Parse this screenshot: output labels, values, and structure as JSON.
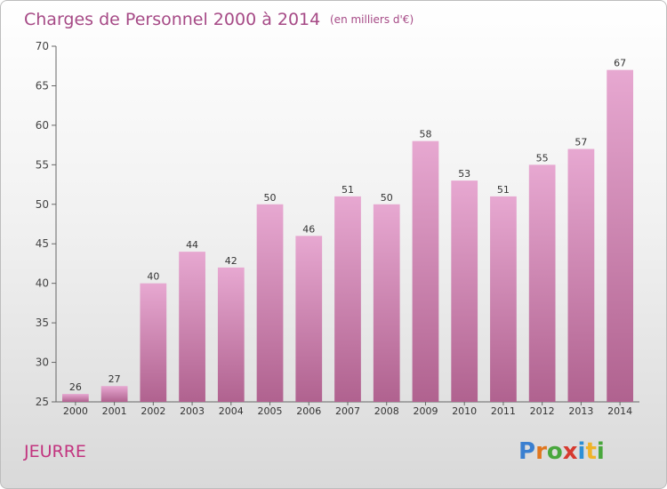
{
  "chart_data": {
    "type": "bar",
    "title": "Charges de Personnel 2000 à 2014",
    "subtitle": "(en milliers d'€)",
    "categories": [
      "2000",
      "2001",
      "2002",
      "2003",
      "2004",
      "2005",
      "2006",
      "2007",
      "2008",
      "2009",
      "2010",
      "2011",
      "2012",
      "2013",
      "2014"
    ],
    "values": [
      26,
      27,
      40,
      44,
      42,
      50,
      46,
      51,
      50,
      58,
      53,
      51,
      55,
      57,
      67
    ],
    "ylim": [
      25,
      70
    ],
    "yticks": [
      25,
      30,
      35,
      40,
      45,
      50,
      55,
      60,
      65,
      70
    ],
    "xlabel": "",
    "ylabel": "",
    "grid": false,
    "bar_color": "#d47fb5"
  },
  "footer": {
    "location": "JEURRE",
    "logo_letters": [
      {
        "ch": "P",
        "color": "#3a7fd0"
      },
      {
        "ch": "r",
        "color": "#e0761e"
      },
      {
        "ch": "o",
        "color": "#49a73d"
      },
      {
        "ch": "x",
        "color": "#d63a2f"
      },
      {
        "ch": "i",
        "color": "#2d8fd6"
      },
      {
        "ch": "t",
        "color": "#f0b32a"
      },
      {
        "ch": "i",
        "color": "#49a73d"
      }
    ]
  }
}
